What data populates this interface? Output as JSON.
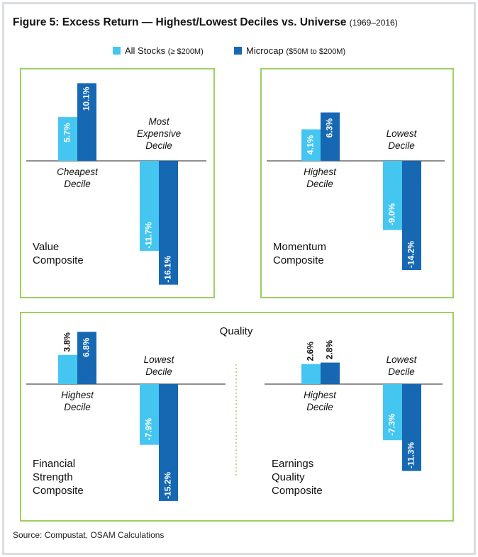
{
  "title": {
    "main": "Figure 5: Excess Return — Highest/Lowest Deciles vs. Universe",
    "sub": "(1969–2016)"
  },
  "legend": [
    {
      "name": "All Stocks",
      "detail": "(≥ $200M)",
      "color": "#45c6f0"
    },
    {
      "name": "Microcap",
      "detail": "($50M to $200M)",
      "color": "#1668b3"
    }
  ],
  "quality_label": "Quality",
  "source": "Source: Compustat, OSAM Calculations",
  "colors": {
    "all_stocks": "#45c6f0",
    "microcap": "#1668b3",
    "border": "#9ed05f",
    "divider": "#9ed05f"
  },
  "chart_data": [
    {
      "type": "bar",
      "composite": [
        "Value",
        "Composite"
      ],
      "groups": [
        {
          "label": [
            "Cheapest",
            "Decile"
          ],
          "all_stocks": 5.7,
          "microcap": 10.1
        },
        {
          "label": [
            "Most",
            "Expensive",
            "Decile"
          ],
          "all_stocks": -11.7,
          "microcap": -16.1
        }
      ]
    },
    {
      "type": "bar",
      "composite": [
        "Momentum",
        "Composite"
      ],
      "groups": [
        {
          "label": [
            "Highest",
            "Decile"
          ],
          "all_stocks": 4.1,
          "microcap": 6.3
        },
        {
          "label": [
            "Lowest",
            "Decile"
          ],
          "all_stocks": -9.0,
          "microcap": -14.2
        }
      ]
    },
    {
      "type": "bar",
      "composite": [
        "Financial",
        "Strength",
        "Composite"
      ],
      "groups": [
        {
          "label": [
            "Highest",
            "Decile"
          ],
          "all_stocks": 3.8,
          "microcap": 6.8
        },
        {
          "label": [
            "Lowest",
            "Decile"
          ],
          "all_stocks": -7.9,
          "microcap": -15.2
        }
      ]
    },
    {
      "type": "bar",
      "composite": [
        "Earnings",
        "Quality",
        "Composite"
      ],
      "groups": [
        {
          "label": [
            "Highest",
            "Decile"
          ],
          "all_stocks": 2.6,
          "microcap": 2.8
        },
        {
          "label": [
            "Lowest",
            "Decile"
          ],
          "all_stocks": -7.3,
          "microcap": -11.3
        }
      ]
    }
  ]
}
